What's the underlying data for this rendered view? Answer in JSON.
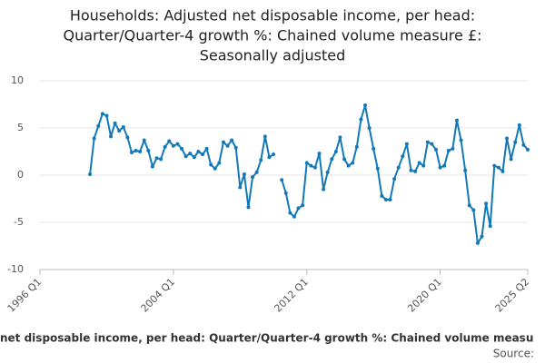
{
  "chart_data": {
    "type": "line",
    "title": [
      "Households: Adjusted net disposable income, per head:",
      "Quarter/Quarter-4 growth %: Chained volume measure £:",
      "Seasonally adjusted"
    ],
    "x_label": "net disposable income, per head: Quarter/Quarter-4 growth %: Chained volume measu",
    "source": "Source:",
    "color": "#1279b8",
    "grid": true,
    "ylim": [
      -10,
      10
    ],
    "yticks": [
      -10,
      -5,
      0,
      5,
      10
    ],
    "categories": [
      "1996 Q1",
      null,
      null,
      null,
      null,
      null,
      null,
      null,
      null,
      null,
      null,
      null,
      null,
      null,
      null,
      null,
      null,
      null,
      null,
      null,
      null,
      null,
      null,
      null,
      null,
      null,
      null,
      null,
      null,
      null,
      null,
      null,
      "2004 Q1",
      null,
      null,
      null,
      null,
      null,
      null,
      null,
      null,
      null,
      null,
      null,
      null,
      null,
      null,
      null,
      null,
      null,
      null,
      null,
      null,
      null,
      null,
      null,
      null,
      null,
      null,
      null,
      null,
      null,
      null,
      null,
      "2012 Q1",
      null,
      null,
      null,
      null,
      null,
      null,
      null,
      null,
      null,
      null,
      null,
      null,
      null,
      null,
      null,
      null,
      null,
      null,
      null,
      null,
      null,
      null,
      null,
      null,
      null,
      null,
      null,
      null,
      null,
      null,
      null,
      "2020 Q1",
      null,
      null,
      null,
      null,
      null,
      null,
      null,
      null,
      null,
      null,
      null,
      null,
      null,
      null,
      null,
      null,
      null,
      null,
      null,
      null,
      "2025 Q2"
    ],
    "values": [
      null,
      null,
      null,
      null,
      null,
      null,
      null,
      null,
      null,
      null,
      null,
      null,
      0.1,
      3.9,
      5.2,
      6.5,
      6.3,
      4.1,
      5.5,
      4.7,
      5.1,
      4.0,
      2.4,
      2.6,
      2.5,
      3.7,
      2.6,
      0.9,
      1.8,
      1.7,
      3.0,
      3.6,
      3.1,
      3.3,
      2.8,
      2.0,
      2.3,
      1.9,
      2.5,
      2.2,
      2.8,
      1.1,
      0.7,
      1.3,
      3.5,
      3.1,
      3.7,
      2.9,
      -1.3,
      0.1,
      -3.4,
      -0.2,
      0.3,
      1.6,
      4.1,
      1.9,
      2.2,
      null,
      -0.5,
      -1.9,
      -4.0,
      -4.4,
      -3.5,
      -3.2,
      1.3,
      1.0,
      0.8,
      2.3,
      -1.5,
      0.3,
      1.7,
      2.5,
      4.0,
      1.7,
      1.0,
      1.3,
      3.0,
      5.9,
      7.4,
      5.0,
      2.8,
      0.7,
      -2.2,
      -2.6,
      -2.6,
      -0.4,
      0.8,
      2.0,
      3.3,
      0.5,
      0.4,
      1.3,
      1.0,
      3.5,
      3.3,
      2.7,
      0.8,
      1.0,
      2.6,
      2.8,
      5.8,
      3.7,
      0.5,
      -3.2,
      -3.7,
      -7.2,
      -6.5,
      -3.0,
      -5.4,
      1.0,
      0.8,
      0.4,
      3.9,
      1.7,
      3.5,
      5.3,
      3.2,
      2.7
    ]
  }
}
